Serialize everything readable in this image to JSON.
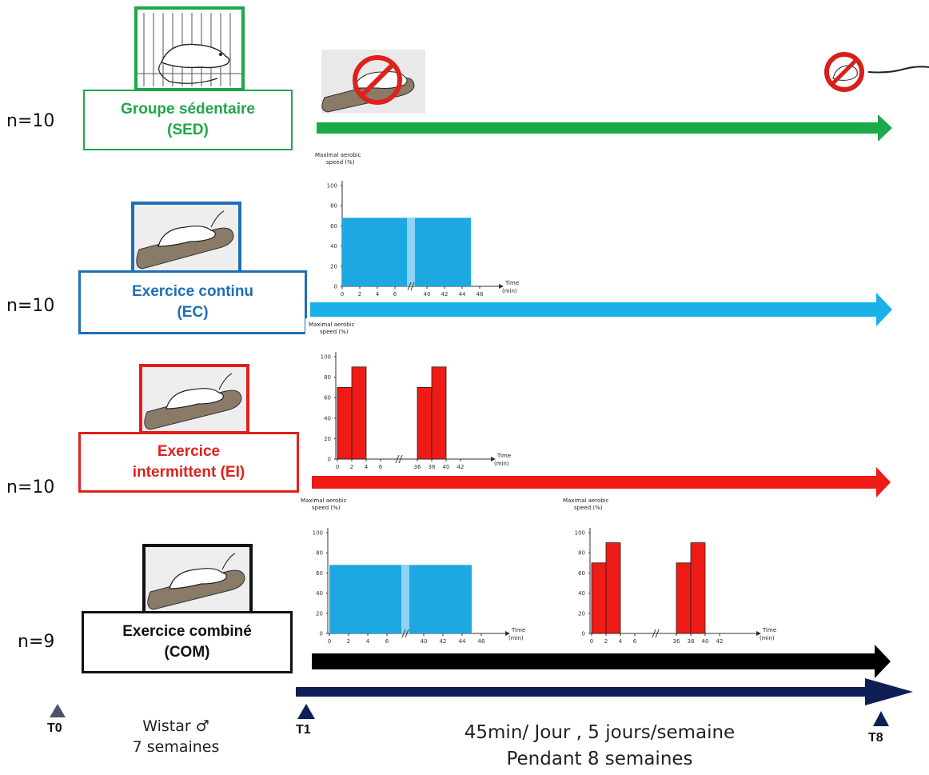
{
  "groups": [
    {
      "n": "n=10",
      "line1": "Groupe sédentaire",
      "line2": "(SED)",
      "color": "#1fa64a"
    },
    {
      "n": "n=10",
      "line1": "Exercice continu",
      "line2": "(EC)",
      "color": "#1f6fb5"
    },
    {
      "n": "n=10",
      "line1": "Exercice",
      "line2": "intermittent (EI)",
      "color": "#e0201b"
    },
    {
      "n": "n=9",
      "line1": "Exercice combiné",
      "line2": "(COM)",
      "color": "#111111"
    }
  ],
  "arrow_colors": {
    "sed": "#1aaa4a",
    "ec": "#1ab0ea",
    "ei": "#ee1b16",
    "com": "#000000",
    "timeline": "#0f1f55"
  },
  "chart_labels": {
    "ylabel1": "Maximal aerobic",
    "ylabel2": "speed (%)",
    "xlabel1": "Time",
    "xlabel2": "(min)"
  },
  "chart_data": [
    {
      "type": "bar",
      "name": "continuous",
      "yticks": [
        "0",
        "20",
        "40",
        "60",
        "80",
        "100"
      ],
      "xticks": [
        "0",
        "2",
        "4",
        "6",
        "40",
        "42",
        "44",
        "46"
      ],
      "bars": [
        {
          "x0": 0,
          "x1": 45,
          "y": 68
        }
      ],
      "fill": "#1ea8e2"
    },
    {
      "type": "bar",
      "name": "intermittent",
      "yticks": [
        "0",
        "20",
        "40",
        "60",
        "80",
        "100"
      ],
      "xticks": [
        "0",
        "2",
        "4",
        "6",
        "36",
        "38",
        "40",
        "42"
      ],
      "bars": [
        {
          "x0": 0,
          "x1": 2,
          "y": 70
        },
        {
          "x0": 2,
          "x1": 4,
          "y": 90
        },
        {
          "x0": 36,
          "x1": 38,
          "y": 70
        },
        {
          "x0": 38,
          "x1": 40,
          "y": 90
        }
      ],
      "fill": "#ee1b16"
    }
  ],
  "timeline": {
    "t0": "T0",
    "t1": "T1",
    "t8": "T8",
    "wistar": "Wistar ♂",
    "weeks": "7 semaines",
    "schedule": "45min/ Jour , 5 jours/semaine",
    "duration": "Pendant 8 semaines"
  }
}
